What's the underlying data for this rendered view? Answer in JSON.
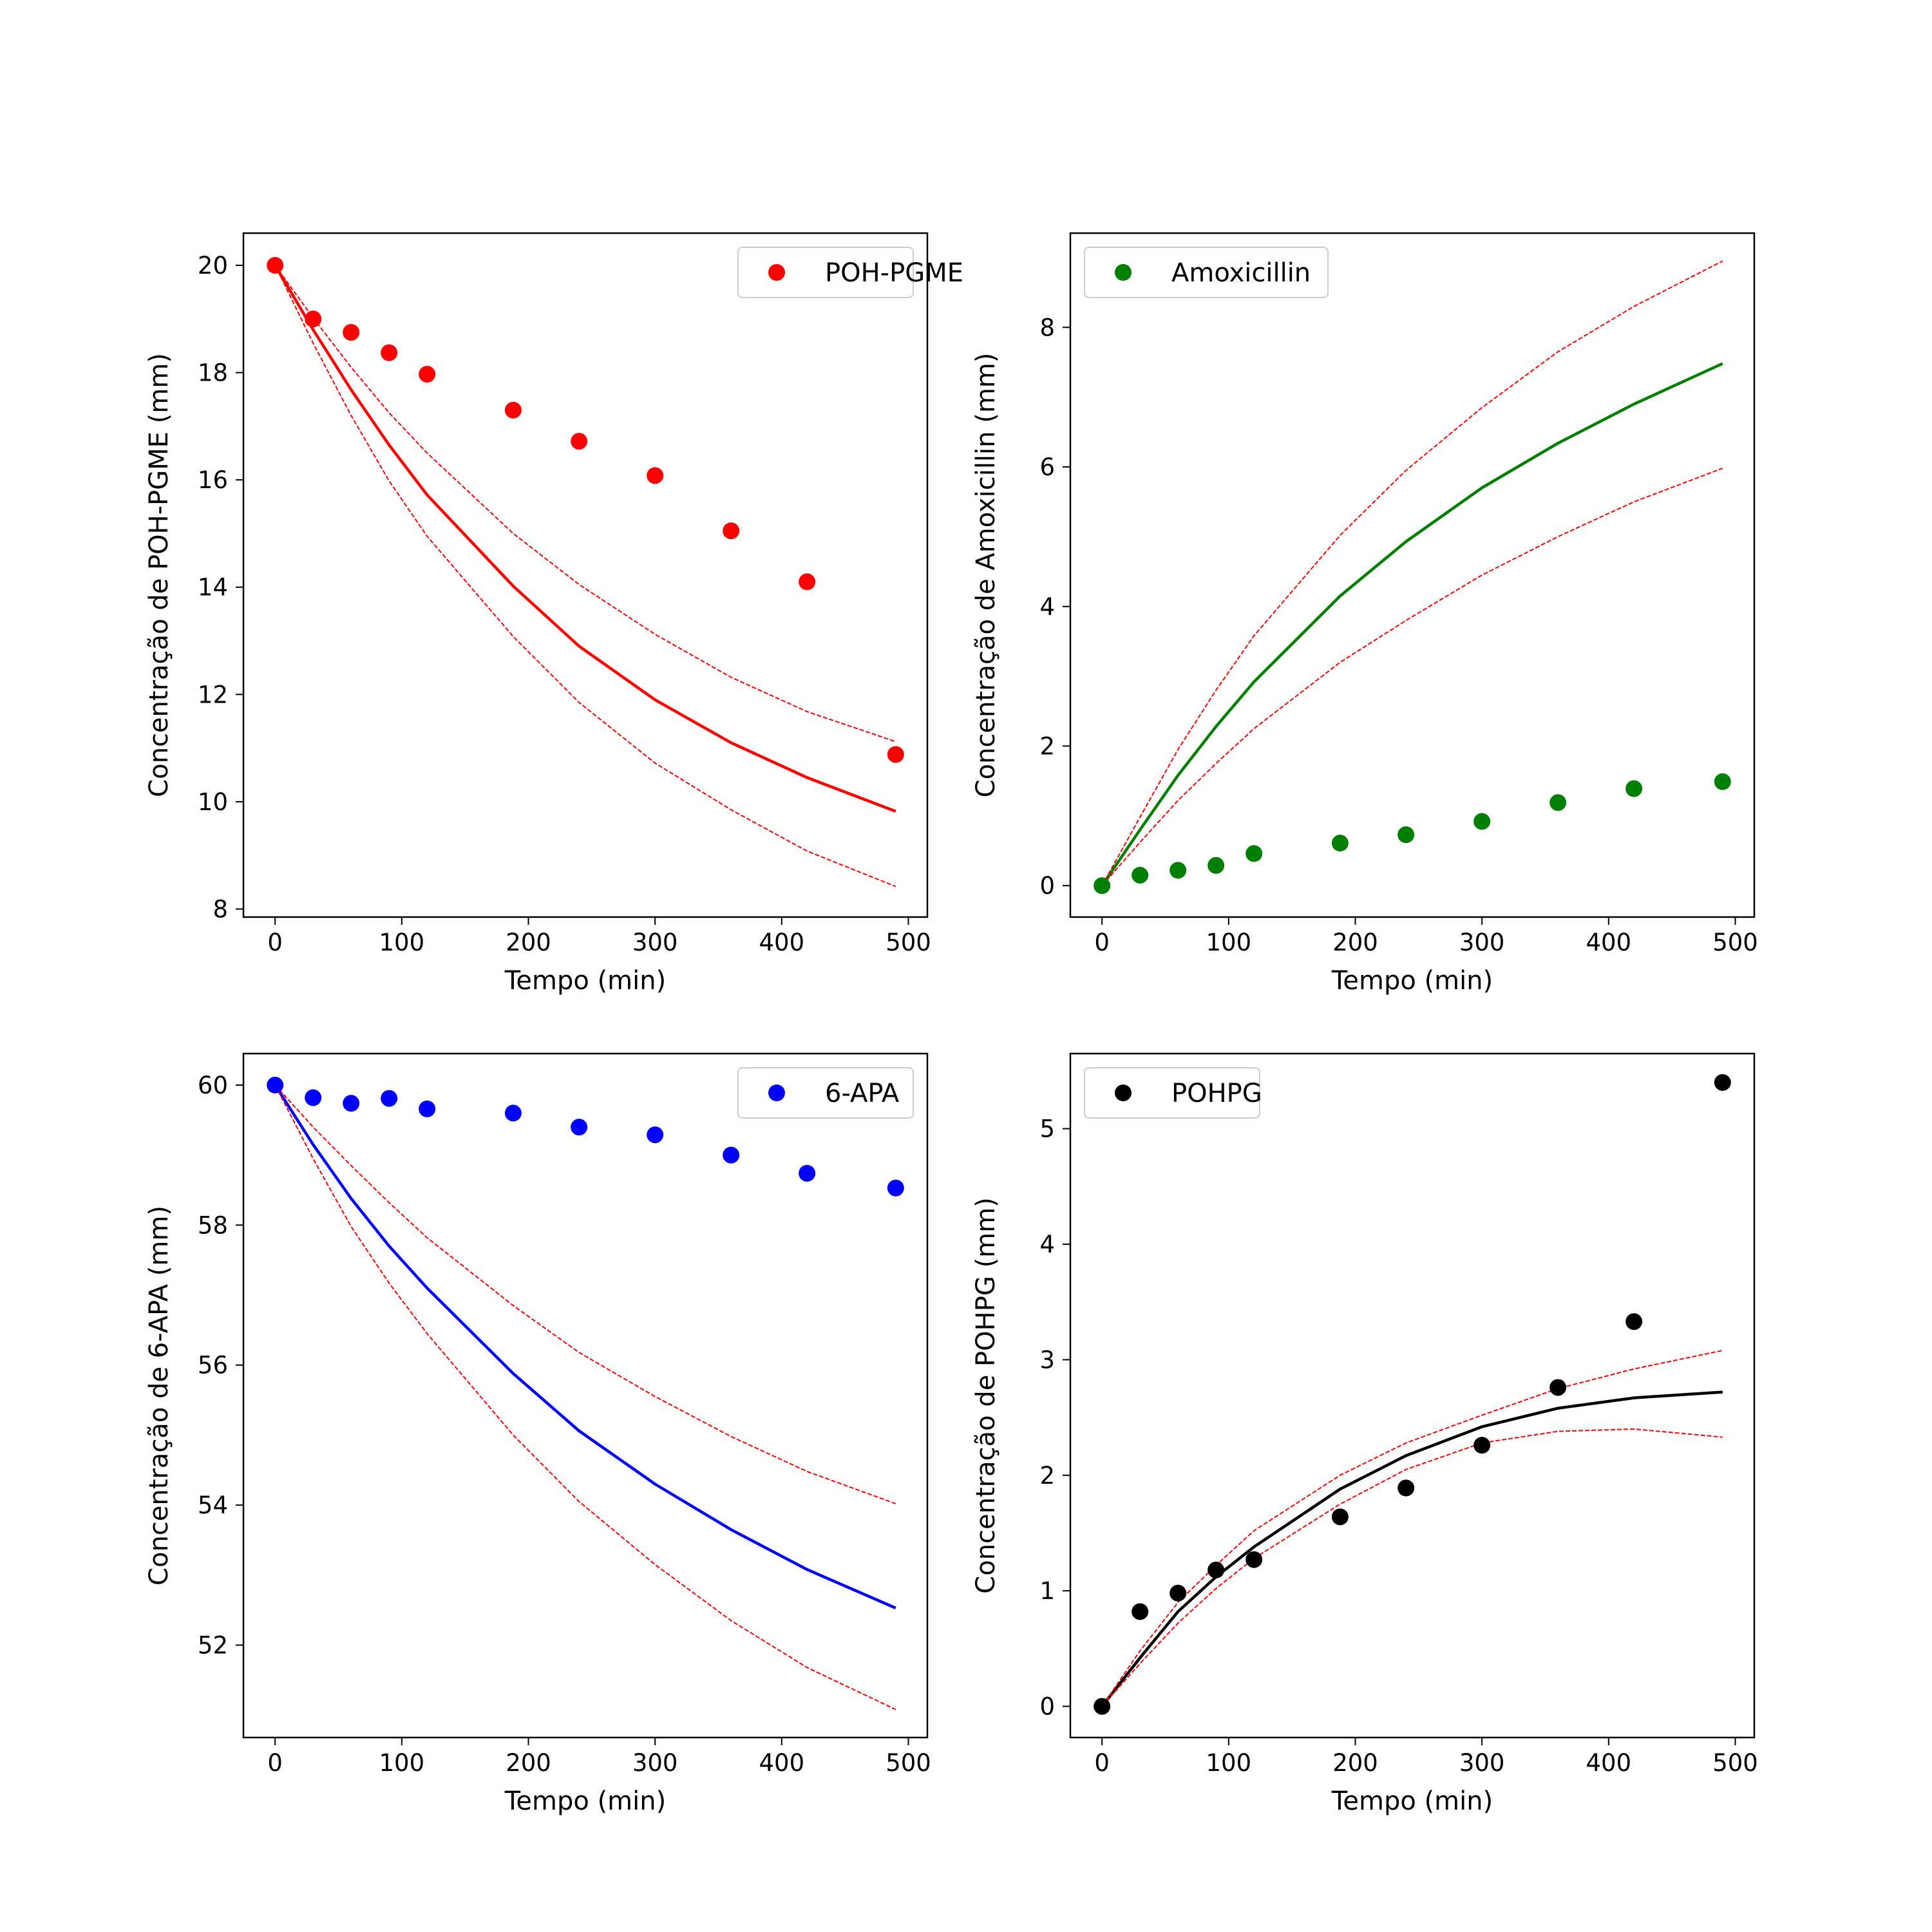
{
  "chart_data": [
    {
      "type": "scatter",
      "title": "",
      "xlabel": "Tempo (min)",
      "ylabel": "Concentração de POH-PGME (mm)",
      "xlim": [
        -25,
        515
      ],
      "ylim": [
        7.85,
        20.6
      ],
      "xticks": [
        0,
        100,
        200,
        300,
        400,
        500
      ],
      "yticks": [
        8,
        10,
        12,
        14,
        16,
        18,
        20
      ],
      "legend": {
        "position": "top-right",
        "label": "POH-PGME"
      },
      "color": "#ff0000",
      "x": [
        0,
        30,
        60,
        90,
        120,
        188,
        240,
        300,
        360,
        420,
        490
      ],
      "series": [
        {
          "role": "observed",
          "style": "markers",
          "values": [
            20.0,
            19.0,
            18.75,
            18.37,
            17.97,
            17.3,
            16.72,
            16.08,
            15.05,
            14.1,
            10.88
          ]
        },
        {
          "role": "model",
          "style": "solid",
          "color": "#ff0000",
          "values": [
            20.0,
            18.8,
            17.68,
            16.65,
            15.72,
            14.02,
            12.9,
            11.9,
            11.1,
            10.45,
            9.82
          ]
        },
        {
          "role": "upper",
          "style": "dashed",
          "color": "#ff0000",
          "values": [
            20.0,
            19.02,
            18.1,
            17.25,
            16.5,
            15.0,
            14.05,
            13.12,
            12.32,
            11.68,
            11.12
          ]
        },
        {
          "role": "lower",
          "style": "dashed",
          "color": "#ff0000",
          "values": [
            20.0,
            18.55,
            17.2,
            15.98,
            14.95,
            13.08,
            11.85,
            10.72,
            9.85,
            9.08,
            8.42
          ]
        }
      ]
    },
    {
      "type": "scatter",
      "title": "",
      "xlabel": "Tempo (min)",
      "ylabel": "Concentração de Amoxicillin (mm)",
      "xlim": [
        -25,
        515
      ],
      "ylim": [
        -0.45,
        9.35
      ],
      "xticks": [
        0,
        100,
        200,
        300,
        400,
        500
      ],
      "yticks": [
        0,
        2,
        4,
        6,
        8
      ],
      "legend": {
        "position": "top-left",
        "label": "Amoxicillin"
      },
      "color": "#008000",
      "x": [
        0,
        30,
        60,
        90,
        120,
        188,
        240,
        300,
        360,
        420,
        490
      ],
      "series": [
        {
          "role": "observed",
          "style": "markers",
          "values": [
            0.0,
            0.15,
            0.22,
            0.29,
            0.46,
            0.61,
            0.73,
            0.92,
            1.19,
            1.39,
            1.49
          ]
        },
        {
          "role": "model",
          "style": "solid",
          "color": "#008000",
          "values": [
            0.0,
            0.8,
            1.58,
            2.28,
            2.92,
            4.15,
            4.93,
            5.7,
            6.34,
            6.9,
            7.48
          ]
        },
        {
          "role": "upper",
          "style": "dashed",
          "color": "#ff0000",
          "values": [
            0.0,
            0.98,
            1.95,
            2.8,
            3.58,
            5.02,
            5.95,
            6.85,
            7.65,
            8.3,
            8.95
          ]
        },
        {
          "role": "lower",
          "style": "dashed",
          "color": "#ff0000",
          "values": [
            0.0,
            0.62,
            1.22,
            1.75,
            2.25,
            3.2,
            3.8,
            4.45,
            5.0,
            5.5,
            5.98
          ]
        }
      ]
    },
    {
      "type": "scatter",
      "title": "",
      "xlabel": "Tempo (min)",
      "ylabel": "Concentração de 6-APA (mm)",
      "xlim": [
        -25,
        515
      ],
      "ylim": [
        50.68,
        60.45
      ],
      "xticks": [
        0,
        100,
        200,
        300,
        400,
        500
      ],
      "yticks": [
        52,
        54,
        56,
        58,
        60
      ],
      "legend": {
        "position": "top-right",
        "label": "6-APA"
      },
      "color": "#0000ff",
      "x": [
        0,
        30,
        60,
        90,
        120,
        188,
        240,
        300,
        360,
        420,
        490
      ],
      "series": [
        {
          "role": "observed",
          "style": "markers",
          "values": [
            60.0,
            59.82,
            59.74,
            59.81,
            59.66,
            59.6,
            59.4,
            59.29,
            59.0,
            58.74,
            58.53
          ]
        },
        {
          "role": "model",
          "style": "solid",
          "color": "#0000ff",
          "values": [
            60.0,
            59.15,
            58.38,
            57.7,
            57.1,
            55.88,
            55.06,
            54.3,
            53.65,
            53.08,
            52.53
          ]
        },
        {
          "role": "upper",
          "style": "dashed",
          "color": "#ff0000",
          "values": [
            60.0,
            59.4,
            58.85,
            58.32,
            57.82,
            56.85,
            56.18,
            55.55,
            54.98,
            54.48,
            54.02
          ]
        },
        {
          "role": "lower",
          "style": "dashed",
          "color": "#ff0000",
          "values": [
            60.0,
            58.95,
            57.98,
            57.17,
            56.45,
            55.0,
            54.05,
            53.15,
            52.35,
            51.68,
            51.08
          ]
        }
      ]
    },
    {
      "type": "scatter",
      "title": "",
      "xlabel": "Tempo (min)",
      "ylabel": "Concentração de POHPG (mm)",
      "xlim": [
        -25,
        515
      ],
      "ylim": [
        -0.27,
        5.65
      ],
      "xticks": [
        0,
        100,
        200,
        300,
        400,
        500
      ],
      "yticks": [
        0,
        1,
        2,
        3,
        4,
        5
      ],
      "legend": {
        "position": "top-left",
        "label": "POHPG"
      },
      "color": "#000000",
      "x": [
        0,
        30,
        60,
        90,
        120,
        188,
        240,
        300,
        360,
        420,
        490
      ],
      "series": [
        {
          "role": "observed",
          "style": "markers",
          "values": [
            0.0,
            0.82,
            0.98,
            1.18,
            1.27,
            1.64,
            1.89,
            2.26,
            2.76,
            3.33,
            5.4
          ]
        },
        {
          "role": "model",
          "style": "solid",
          "color": "#000000",
          "values": [
            0.0,
            0.42,
            0.82,
            1.12,
            1.38,
            1.88,
            2.17,
            2.42,
            2.58,
            2.67,
            2.72
          ]
        },
        {
          "role": "upper",
          "style": "dashed",
          "color": "#ff0000",
          "values": [
            0.0,
            0.48,
            0.9,
            1.22,
            1.52,
            2.0,
            2.28,
            2.52,
            2.75,
            2.92,
            3.08
          ]
        },
        {
          "role": "lower",
          "style": "dashed",
          "color": "#ff0000",
          "values": [
            0.0,
            0.37,
            0.72,
            1.02,
            1.28,
            1.75,
            2.05,
            2.28,
            2.38,
            2.4,
            2.33
          ]
        }
      ]
    }
  ]
}
